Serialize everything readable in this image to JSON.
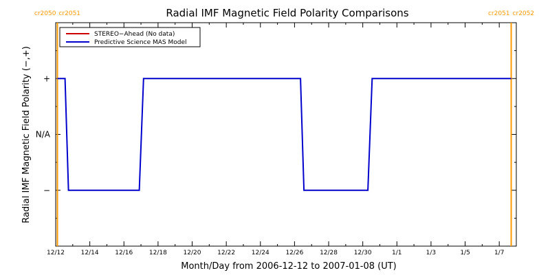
{
  "chart_data": {
    "type": "line",
    "title": "Radial IMF Magnetic Field Polarity Comparisons",
    "xlabel": "Month/Day from 2006-12-12 to 2007-01-08 (UT)",
    "ylabel": "Radial IMF Magnetic Field Polarity (−,+)",
    "x_start_date": "2006-12-12",
    "x_range_days": [
      0,
      27
    ],
    "x_tick_days": [
      0,
      2,
      4,
      6,
      8,
      10,
      12,
      14,
      16,
      18,
      20,
      22,
      24,
      26
    ],
    "x_tick_labels": [
      "12/12",
      "12/14",
      "12/16",
      "12/18",
      "12/20",
      "12/22",
      "12/24",
      "12/26",
      "12/28",
      "12/30",
      "1/1",
      "1/3",
      "1/5",
      "1/7"
    ],
    "ylim": [
      -2,
      2
    ],
    "y_ticks": [
      1,
      0,
      -1
    ],
    "y_tick_labels": [
      "+",
      "N/A",
      "−"
    ],
    "carrington_markers": [
      {
        "day": 0.1,
        "left_label": "cr2050",
        "right_label": "cr2051",
        "color": "#ff9900"
      },
      {
        "day": 26.7,
        "left_label": "cr2051",
        "right_label": "cr2052",
        "color": "#ff9900"
      }
    ],
    "legend": {
      "placement": "top-left",
      "entries": [
        {
          "label": "STEREO−Ahead (No data)",
          "color": "#cc0000"
        },
        {
          "label": "Predictive Science MAS Model",
          "color": "#0000cc"
        }
      ]
    },
    "series": [
      {
        "name": "STEREO−Ahead (No data)",
        "color": "#cc0000",
        "x": [],
        "y": []
      },
      {
        "name": "Predictive Science MAS Model",
        "color": "#0000cc",
        "x": [
          0.1,
          0.55,
          0.75,
          4.9,
          5.15,
          14.35,
          14.55,
          18.3,
          18.55,
          26.7
        ],
        "y": [
          1,
          1,
          -1,
          -1,
          1,
          1,
          -1,
          -1,
          1,
          1
        ]
      }
    ]
  }
}
